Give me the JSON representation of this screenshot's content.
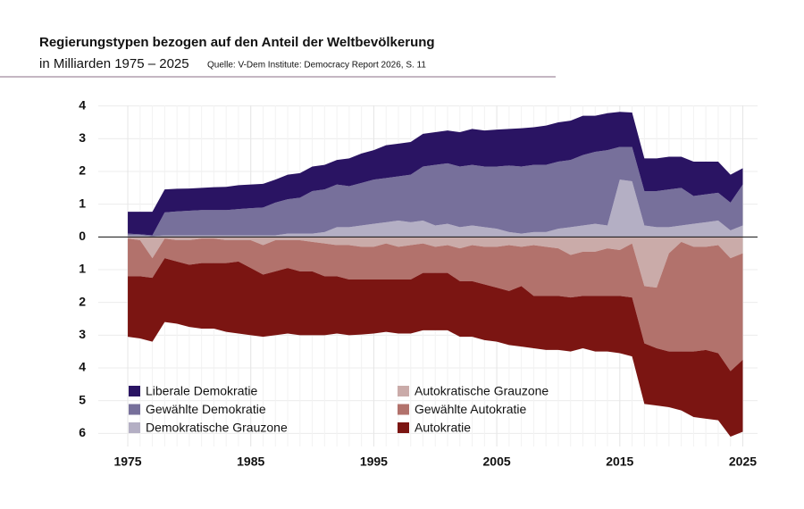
{
  "chart_data": {
    "type": "diverging-area",
    "title": "Regierungstypen bezogen auf den Anteil der Weltbevölkerung",
    "subtitle": "in Milliarden 1975 – 2025",
    "source": "Quelle: V-Dem Institute: Democracy Report 2026, S. 11",
    "x": [
      1975,
      1976,
      1977,
      1978,
      1979,
      1980,
      1981,
      1982,
      1983,
      1984,
      1985,
      1986,
      1987,
      1988,
      1989,
      1990,
      1991,
      1992,
      1993,
      1994,
      1995,
      1996,
      1997,
      1998,
      1999,
      2000,
      2001,
      2002,
      2003,
      2004,
      2005,
      2006,
      2007,
      2008,
      2009,
      2010,
      2011,
      2012,
      2013,
      2014,
      2015,
      2016,
      2017,
      2018,
      2019,
      2020,
      2021,
      2022,
      2023,
      2024,
      2025
    ],
    "series": [
      {
        "name": "Demokratische Grauzone",
        "color": "#b4afc4",
        "values": [
          0.05,
          0.05,
          0.02,
          0.05,
          0.05,
          0.05,
          0.05,
          0.05,
          0.05,
          0.05,
          0.05,
          0.05,
          0.05,
          0.1,
          0.1,
          0.1,
          0.15,
          0.3,
          0.3,
          0.35,
          0.4,
          0.45,
          0.5,
          0.45,
          0.5,
          0.35,
          0.4,
          0.3,
          0.35,
          0.3,
          0.25,
          0.15,
          0.1,
          0.15,
          0.15,
          0.25,
          0.3,
          0.35,
          0.4,
          0.35,
          1.75,
          1.7,
          0.35,
          0.3,
          0.3,
          0.35,
          0.4,
          0.45,
          0.5,
          0.2,
          0.35
        ]
      },
      {
        "name": "Gewählte Demokratie",
        "color": "#77709b",
        "values": [
          0.05,
          0.03,
          0.03,
          0.7,
          0.73,
          0.75,
          0.77,
          0.77,
          0.77,
          0.8,
          0.83,
          0.85,
          1.0,
          1.05,
          1.1,
          1.3,
          1.3,
          1.3,
          1.25,
          1.3,
          1.35,
          1.35,
          1.35,
          1.45,
          1.65,
          1.85,
          1.85,
          1.85,
          1.85,
          1.85,
          1.9,
          2.03,
          2.05,
          2.05,
          2.05,
          2.05,
          2.05,
          2.15,
          2.2,
          2.3,
          1.0,
          1.05,
          1.05,
          1.1,
          1.15,
          1.15,
          0.85,
          0.85,
          0.85,
          0.85,
          1.25
        ]
      },
      {
        "name": "Liberale Demokratie",
        "color": "#2a1463",
        "values": [
          0.67,
          0.69,
          0.72,
          0.7,
          0.69,
          0.68,
          0.68,
          0.7,
          0.71,
          0.73,
          0.72,
          0.72,
          0.7,
          0.75,
          0.75,
          0.75,
          0.75,
          0.75,
          0.85,
          0.9,
          0.9,
          1.0,
          1.0,
          1.0,
          1.0,
          1.0,
          1.0,
          1.05,
          1.1,
          1.1,
          1.13,
          1.12,
          1.17,
          1.15,
          1.2,
          1.2,
          1.2,
          1.2,
          1.1,
          1.13,
          1.07,
          1.05,
          1.0,
          1.0,
          1.0,
          0.95,
          1.05,
          1.0,
          0.95,
          0.85,
          0.5
        ]
      },
      {
        "name": "Autokratische Grauzone",
        "color": "#caaba9",
        "values": [
          -0.05,
          -0.1,
          -0.65,
          -0.05,
          -0.1,
          -0.1,
          -0.05,
          -0.05,
          -0.1,
          -0.1,
          -0.1,
          -0.25,
          -0.1,
          -0.1,
          -0.1,
          -0.15,
          -0.2,
          -0.25,
          -0.25,
          -0.3,
          -0.3,
          -0.2,
          -0.3,
          -0.25,
          -0.2,
          -0.3,
          -0.25,
          -0.35,
          -0.25,
          -0.3,
          -0.3,
          -0.25,
          -0.3,
          -0.25,
          -0.3,
          -0.35,
          -0.55,
          -0.45,
          -0.45,
          -0.35,
          -0.4,
          -0.2,
          -1.5,
          -1.55,
          -0.5,
          -0.15,
          -0.3,
          -0.3,
          -0.25,
          -0.65,
          -0.5
        ]
      },
      {
        "name": "Gewählte Autokratie",
        "color": "#b2726c",
        "values": [
          -1.15,
          -1.1,
          -0.6,
          -0.6,
          -0.65,
          -0.75,
          -0.75,
          -0.75,
          -0.7,
          -0.65,
          -0.85,
          -0.9,
          -0.95,
          -0.85,
          -0.95,
          -0.9,
          -1.0,
          -0.95,
          -1.05,
          -1.0,
          -1.0,
          -1.1,
          -1.0,
          -1.05,
          -0.9,
          -0.8,
          -0.85,
          -1.0,
          -1.1,
          -1.15,
          -1.25,
          -1.4,
          -1.2,
          -1.55,
          -1.5,
          -1.45,
          -1.3,
          -1.35,
          -1.35,
          -1.45,
          -1.4,
          -1.65,
          -1.75,
          -1.85,
          -3.0,
          -3.35,
          -3.2,
          -3.15,
          -3.3,
          -3.45,
          -3.25
        ]
      },
      {
        "name": "Autokratie",
        "color": "#7b1512",
        "values": [
          -1.85,
          -1.9,
          -1.95,
          -1.95,
          -1.9,
          -1.9,
          -2.0,
          -2.0,
          -2.1,
          -2.2,
          -2.05,
          -1.9,
          -1.95,
          -2.0,
          -1.95,
          -1.95,
          -1.8,
          -1.75,
          -1.7,
          -1.68,
          -1.65,
          -1.6,
          -1.65,
          -1.65,
          -1.75,
          -1.75,
          -1.75,
          -1.7,
          -1.7,
          -1.7,
          -1.65,
          -1.65,
          -1.85,
          -1.6,
          -1.65,
          -1.65,
          -1.65,
          -1.6,
          -1.7,
          -1.7,
          -1.75,
          -1.8,
          -1.85,
          -1.75,
          -1.7,
          -1.8,
          -2.0,
          -2.1,
          -2.05,
          -2.0,
          -2.2
        ]
      }
    ],
    "xlim": [
      1972.6,
      2026.2
    ],
    "xticks": [
      1975,
      1985,
      1995,
      2005,
      2015,
      2025
    ],
    "ylim": [
      -6.4,
      4.4
    ],
    "yticks": [
      {
        "value": -6,
        "label": "6"
      },
      {
        "value": -5,
        "label": "5"
      },
      {
        "value": -4,
        "label": "4"
      },
      {
        "value": -3,
        "label": "3"
      },
      {
        "value": -2,
        "label": "2"
      },
      {
        "value": -1,
        "label": "1"
      },
      0,
      1,
      2,
      3,
      4
    ],
    "grid": true
  }
}
